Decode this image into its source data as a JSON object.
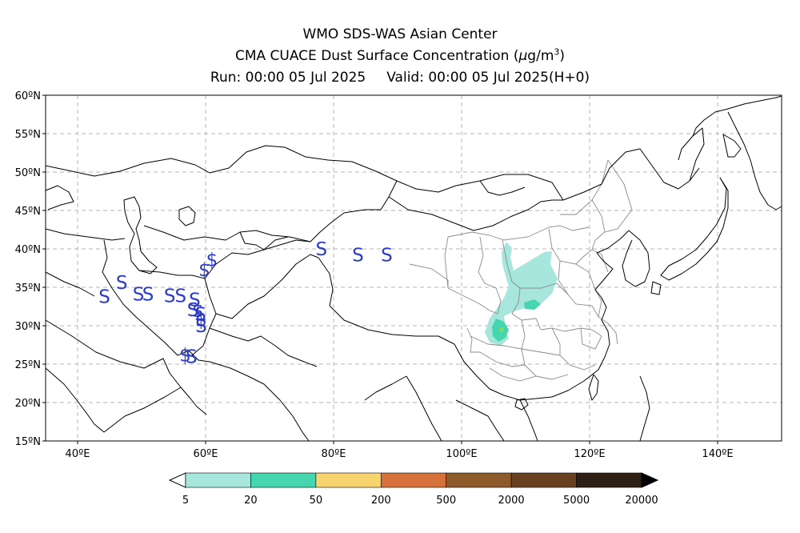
{
  "header": {
    "line1": "WMO SDS-WAS Asian Center",
    "line2_prefix": "CMA CUACE Dust Surface Concentration (",
    "line2_unit_mu": "μ",
    "line2_unit_g": "g/m",
    "line2_unit_exp": "3",
    "line2_suffix": ")",
    "run_label": "Run: 00:00 05 Jul 2025",
    "valid_label": "Valid: 00:00 05 Jul 2025(H+0)"
  },
  "map": {
    "lon_range": [
      35,
      150
    ],
    "lat_range": [
      15,
      60
    ],
    "lat_ticks": [
      "60ºN",
      "55ºN",
      "50ºN",
      "45ºN",
      "40ºN",
      "35ºN",
      "30ºN",
      "25ºN",
      "20ºN",
      "15ºN"
    ],
    "lon_ticks": [
      "40ºE",
      "60ºE",
      "80ºE",
      "100ºE",
      "120ºE",
      "140ºE"
    ],
    "grid": true,
    "colors": {
      "coast": "#000000",
      "province": "#8a8a8a",
      "grid": "#b5b5b5",
      "dust_symbol": "#2c3cc8"
    }
  },
  "dust_symbols": [
    {
      "label": "S",
      "lon": 44.2,
      "lat": 33.8
    },
    {
      "label": "S",
      "lon": 46.9,
      "lat": 35.6
    },
    {
      "label": "S",
      "lon": 49.5,
      "lat": 34.1
    },
    {
      "label": "S",
      "lon": 51.0,
      "lat": 34.1
    },
    {
      "label": "S",
      "lon": 54.4,
      "lat": 33.9
    },
    {
      "label": "S",
      "lon": 56.1,
      "lat": 33.9
    },
    {
      "label": "S",
      "lon": 58.3,
      "lat": 33.4
    },
    {
      "label": "S",
      "lon": 58.0,
      "lat": 32.1
    },
    {
      "label": "S",
      "lon": 59.2,
      "lat": 31.5
    },
    {
      "label": "S",
      "lon": 59.3,
      "lat": 30.0
    },
    {
      "label": "S",
      "lon": 57.8,
      "lat": 26.0
    },
    {
      "label": "$",
      "lon": 61.0,
      "lat": 38.6
    },
    {
      "label": "$",
      "lon": 59.8,
      "lat": 37.3
    },
    {
      "label": "$",
      "lon": 58.8,
      "lat": 32.0
    },
    {
      "label": "$",
      "lon": 59.3,
      "lat": 30.8
    },
    {
      "label": "$",
      "lon": 56.8,
      "lat": 26.2
    },
    {
      "label": "S",
      "lon": 78.1,
      "lat": 40.0
    },
    {
      "label": "S",
      "lon": 83.8,
      "lat": 39.2
    },
    {
      "label": "S",
      "lon": 88.3,
      "lat": 39.2
    }
  ],
  "colorbar": {
    "tick_labels": [
      "5",
      "20",
      "50",
      "200",
      "500",
      "2000",
      "5000",
      "20000"
    ],
    "colors": [
      "#a6e6dc",
      "#45d6b0",
      "#f8d46e",
      "#d7713c",
      "#8f5a2a",
      "#684220",
      "#2e1f14"
    ],
    "extend_low_color": "#ffffff",
    "extend_high_color": "#000000"
  }
}
